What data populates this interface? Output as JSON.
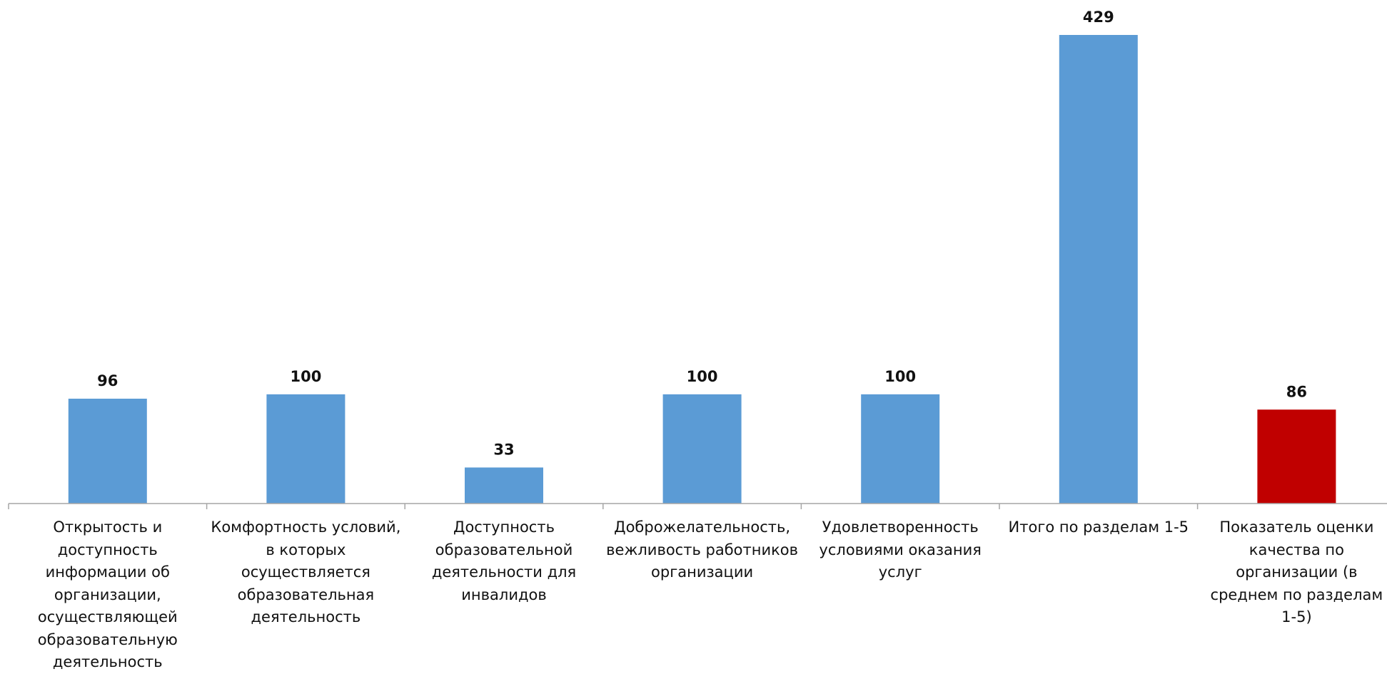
{
  "chart_data": {
    "type": "bar",
    "title": "",
    "xlabel": "",
    "ylabel": "",
    "ylim": [
      0,
      429
    ],
    "grid": false,
    "legend": "none",
    "categories": [
      "Открытость и доступность информации об организации, осуществляющей образовательную деятельность",
      "Комфортность условий, в которых осуществляется образовательная деятельность",
      "Доступность образовательной деятельности для инвалидов",
      "Доброжелательность, вежливость работников организации",
      "Удовлетворенность условиями оказания услуг",
      "Итого по разделам 1-5",
      "Показатель оценки качества по организации (в среднем по разделам 1-5)"
    ],
    "category_lines": [
      [
        "Открытость и",
        "доступность",
        "информации об",
        "организации,",
        "осуществляющей",
        "образовательную",
        "деятельность"
      ],
      [
        "Комфортность условий,",
        "в которых",
        "осуществляется",
        "образовательная",
        "деятельность"
      ],
      [
        "Доступность",
        "образовательной",
        "деятельности для",
        "инвалидов"
      ],
      [
        "Доброжелательность,",
        "вежливость работников",
        "организации"
      ],
      [
        "Удовлетворенность",
        "условиями оказания",
        "услуг"
      ],
      [
        "Итого по разделам 1-5"
      ],
      [
        "Показатель оценки",
        "качества по",
        "организации (в",
        "среднем по разделам",
        "1-5)"
      ]
    ],
    "values": [
      96,
      100,
      33,
      100,
      100,
      429,
      86
    ],
    "bar_colors": [
      "#5b9bd5",
      "#5b9bd5",
      "#5b9bd5",
      "#5b9bd5",
      "#5b9bd5",
      "#5b9bd5",
      "#c00000"
    ],
    "data_labels": [
      "96",
      "100",
      "33",
      "100",
      "100",
      "429",
      "86"
    ]
  },
  "colors": {
    "series": "#5b9bd5",
    "highlight": "#c00000",
    "axis": "#a6a6a6",
    "text": "#111111"
  }
}
